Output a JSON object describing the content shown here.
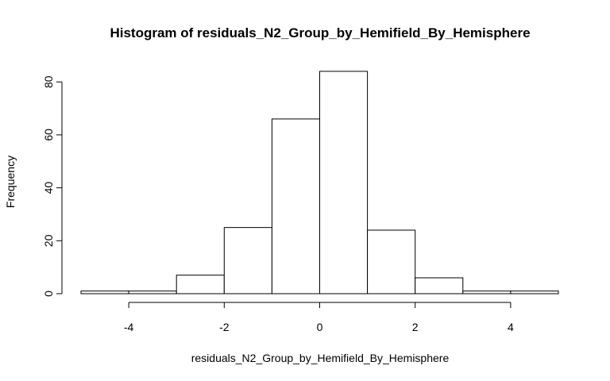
{
  "chart_data": {
    "type": "bar",
    "title": "Histogram of residuals_N2_Group_by_Hemifield_By_Hemisphere",
    "xlabel": "residuals_N2_Group_by_Hemifield_By_Hemisphere",
    "ylabel": "Frequency",
    "bins": [
      {
        "start": -5,
        "end": -4,
        "count": 1
      },
      {
        "start": -4,
        "end": -3,
        "count": 1
      },
      {
        "start": -3,
        "end": -2,
        "count": 7
      },
      {
        "start": -2,
        "end": -1,
        "count": 25
      },
      {
        "start": -1,
        "end": 0,
        "count": 66
      },
      {
        "start": 0,
        "end": 1,
        "count": 84
      },
      {
        "start": 1,
        "end": 2,
        "count": 24
      },
      {
        "start": 2,
        "end": 3,
        "count": 6
      },
      {
        "start": 3,
        "end": 4,
        "count": 1
      },
      {
        "start": 4,
        "end": 5,
        "count": 1
      }
    ],
    "xlim": [
      -5,
      5
    ],
    "ylim": [
      0,
      84
    ],
    "x_ticks": [
      -4,
      -2,
      0,
      2,
      4
    ],
    "y_ticks": [
      0,
      20,
      40,
      60,
      80
    ],
    "x_tick_labels": [
      "-4",
      "-2",
      "0",
      "2",
      "4"
    ],
    "y_tick_labels": [
      "0",
      "20",
      "40",
      "60",
      "80"
    ],
    "bar_fill": "#ffffff",
    "bar_stroke": "#000000",
    "grid": false,
    "legend": "none"
  }
}
